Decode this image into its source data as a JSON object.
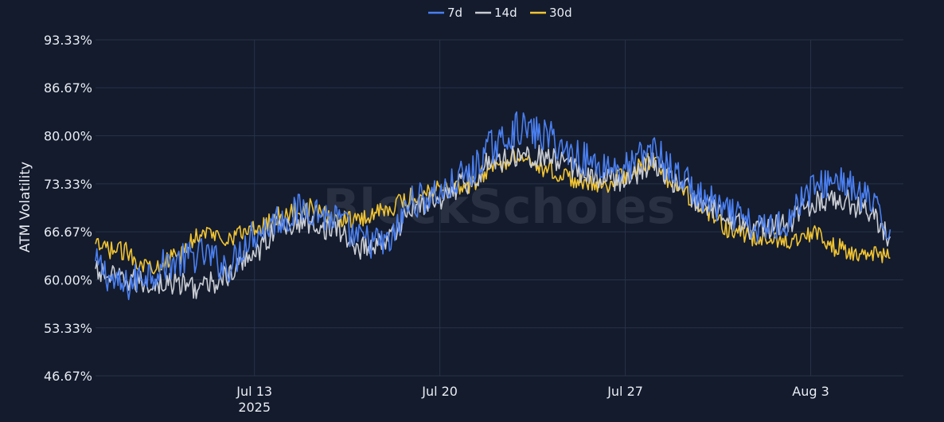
{
  "chart_data": {
    "type": "line",
    "ylabel": "ATM Volatility",
    "watermark": "BlockScholes",
    "y_ticks": [
      "46.67%",
      "53.33%",
      "60.00%",
      "66.67%",
      "73.33%",
      "80.00%",
      "86.67%",
      "93.33%"
    ],
    "y_tick_values": [
      46.67,
      53.33,
      60.0,
      66.67,
      73.33,
      80.0,
      86.67,
      93.33
    ],
    "ylim": [
      46.67,
      93.33
    ],
    "x_ticks": [
      {
        "day": 13,
        "label": "Jul 13",
        "sublabel": "2025"
      },
      {
        "day": 20,
        "label": "Jul 20",
        "sublabel": ""
      },
      {
        "day": 27,
        "label": "Jul 27",
        "sublabel": ""
      },
      {
        "day": 34,
        "label": "Aug 3",
        "sublabel": ""
      }
    ],
    "xlim": [
      "2025-07-07T00:00",
      "2025-08-06T12:00"
    ],
    "x": [
      "2025-07-07",
      "2025-07-08",
      "2025-07-09",
      "2025-07-10",
      "2025-07-11",
      "2025-07-12",
      "2025-07-13",
      "2025-07-14",
      "2025-07-15",
      "2025-07-16",
      "2025-07-17",
      "2025-07-18",
      "2025-07-19",
      "2025-07-20",
      "2025-07-21",
      "2025-07-22",
      "2025-07-23",
      "2025-07-24",
      "2025-07-25",
      "2025-07-26",
      "2025-07-27",
      "2025-07-28",
      "2025-07-29",
      "2025-07-30",
      "2025-07-31",
      "2025-08-01",
      "2025-08-02",
      "2025-08-03",
      "2025-08-04",
      "2025-08-05",
      "2025-08-06"
    ],
    "legend_position": "top-center",
    "grid": true,
    "series": [
      {
        "name": "7d",
        "color": "#4a7ff0",
        "values": [
          62.0,
          59.0,
          61.0,
          62.5,
          63.5,
          62.0,
          66.5,
          68.5,
          70.0,
          68.5,
          65.5,
          65.0,
          71.0,
          72.0,
          74.5,
          78.5,
          81.0,
          80.0,
          77.5,
          76.0,
          75.5,
          78.0,
          74.5,
          71.0,
          69.0,
          67.0,
          68.0,
          72.5,
          74.0,
          71.5,
          67.0
        ]
      },
      {
        "name": "14d",
        "color": "#c9ccd3",
        "values": [
          61.0,
          60.0,
          59.5,
          59.5,
          59.0,
          60.5,
          64.0,
          67.5,
          68.0,
          67.0,
          64.5,
          65.5,
          70.0,
          71.5,
          73.5,
          76.5,
          77.5,
          77.0,
          75.5,
          74.0,
          74.0,
          76.0,
          73.5,
          70.0,
          68.5,
          67.0,
          67.5,
          70.5,
          71.5,
          70.0,
          66.0
        ]
      },
      {
        "name": "30d",
        "color": "#f2c431",
        "values": [
          64.5,
          64.0,
          62.0,
          63.0,
          66.5,
          66.0,
          67.0,
          69.0,
          70.0,
          68.5,
          68.5,
          70.0,
          71.5,
          73.0,
          73.0,
          75.5,
          77.5,
          75.5,
          74.0,
          73.0,
          74.5,
          76.5,
          72.5,
          69.5,
          67.0,
          65.5,
          65.5,
          66.5,
          64.5,
          63.5,
          63.0
        ]
      }
    ]
  }
}
